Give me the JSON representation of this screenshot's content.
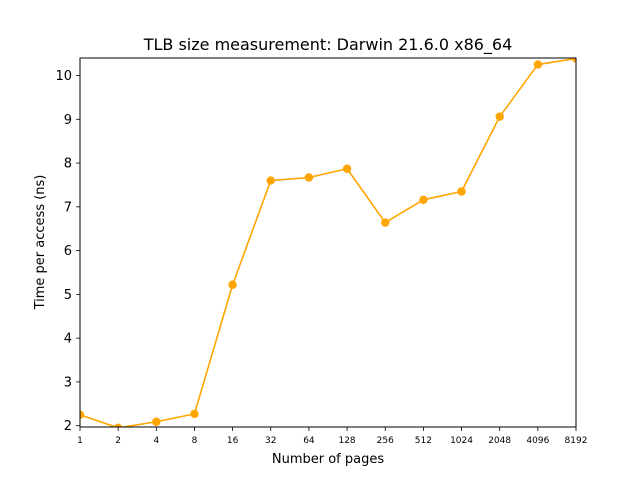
{
  "chart_data": {
    "type": "line",
    "title": "TLB size measurement: Darwin 21.6.0 x86_64",
    "xlabel": "Number of pages",
    "ylabel": "Time per access (ns)",
    "categories": [
      "1",
      "2",
      "4",
      "8",
      "16",
      "32",
      "64",
      "128",
      "256",
      "512",
      "1024",
      "2048",
      "4096",
      "8192"
    ],
    "series": [
      {
        "values": [
          2.25,
          1.95,
          2.09,
          2.27,
          5.22,
          7.6,
          7.67,
          7.87,
          6.64,
          7.16,
          7.35,
          9.06,
          10.25,
          10.39
        ],
        "color": "#FFA500"
      }
    ],
    "yticks": [
      "2",
      "3",
      "4",
      "5",
      "6",
      "7",
      "8",
      "9",
      "10"
    ],
    "ylim": [
      1.97,
      10.4
    ],
    "grid": false,
    "legend": "none"
  }
}
